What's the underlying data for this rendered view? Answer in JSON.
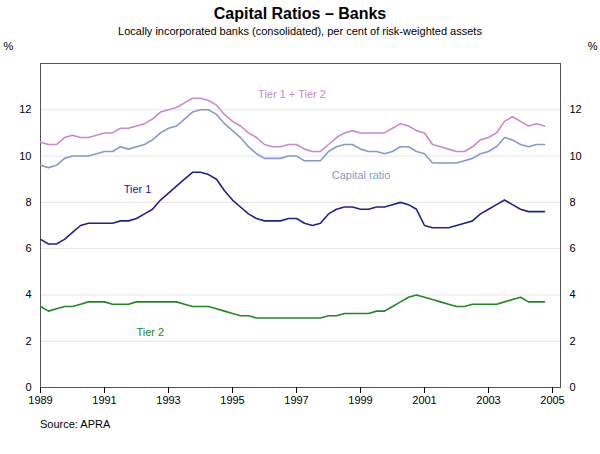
{
  "chart_data": {
    "type": "line",
    "title": "Capital Ratios – Banks",
    "subtitle": "Locally incorporated banks (consolidated), per cent of risk-weighted assets",
    "source": "Source: APRA",
    "ylabel": "%",
    "y2label": "%",
    "xlim": [
      1989.0,
      2005.25
    ],
    "xticks": [
      1989,
      1991,
      1993,
      1995,
      1997,
      1999,
      2001,
      2003,
      2005
    ],
    "ylim": [
      0,
      14
    ],
    "yticks": [
      0,
      2,
      4,
      6,
      8,
      10,
      12
    ],
    "y2lim": [
      0,
      14
    ],
    "y2ticks": [
      0,
      2,
      4,
      6,
      8,
      10,
      12
    ],
    "grid": true,
    "x": [
      1989.0,
      1989.25,
      1989.5,
      1989.75,
      1990.0,
      1990.25,
      1990.5,
      1990.75,
      1991.0,
      1991.25,
      1991.5,
      1991.75,
      1992.0,
      1992.25,
      1992.5,
      1992.75,
      1993.0,
      1993.25,
      1993.5,
      1993.75,
      1994.0,
      1994.25,
      1994.5,
      1994.75,
      1995.0,
      1995.25,
      1995.5,
      1995.75,
      1996.0,
      1996.25,
      1996.5,
      1996.75,
      1997.0,
      1997.25,
      1997.5,
      1997.75,
      1998.0,
      1998.25,
      1998.5,
      1998.75,
      1999.0,
      1999.25,
      1999.5,
      1999.75,
      2000.0,
      2000.25,
      2000.5,
      2000.75,
      2001.0,
      2001.25,
      2001.5,
      2001.75,
      2002.0,
      2002.25,
      2002.5,
      2002.75,
      2003.0,
      2003.25,
      2003.5,
      2003.75,
      2004.0,
      2004.25,
      2004.5,
      2004.75
    ],
    "series": [
      {
        "name": "Tier 1 + Tier 2",
        "color": "#cc88cc",
        "values": [
          10.6,
          10.5,
          10.5,
          10.8,
          10.9,
          10.8,
          10.8,
          10.9,
          11.0,
          11.0,
          11.2,
          11.2,
          11.3,
          11.4,
          11.6,
          11.9,
          12.0,
          12.1,
          12.3,
          12.5,
          12.5,
          12.4,
          12.2,
          11.8,
          11.5,
          11.3,
          11.0,
          10.8,
          10.5,
          10.4,
          10.4,
          10.5,
          10.5,
          10.3,
          10.2,
          10.2,
          10.5,
          10.8,
          11.0,
          11.1,
          11.0,
          11.0,
          11.0,
          11.0,
          11.2,
          11.4,
          11.3,
          11.1,
          11.0,
          10.5,
          10.4,
          10.3,
          10.2,
          10.2,
          10.4,
          10.7,
          10.8,
          11.0,
          11.5,
          11.7,
          11.5,
          11.3,
          11.4,
          11.3
        ]
      },
      {
        "name": "Capital ratio",
        "color": "#8899cc",
        "values": [
          9.6,
          9.5,
          9.6,
          9.9,
          10.0,
          10.0,
          10.0,
          10.1,
          10.2,
          10.2,
          10.4,
          10.3,
          10.4,
          10.5,
          10.7,
          11.0,
          11.2,
          11.3,
          11.6,
          11.9,
          12.0,
          12.0,
          11.8,
          11.4,
          11.1,
          10.8,
          10.4,
          10.1,
          9.9,
          9.9,
          9.9,
          10.0,
          10.0,
          9.8,
          9.8,
          9.8,
          10.2,
          10.4,
          10.5,
          10.5,
          10.3,
          10.2,
          10.2,
          10.1,
          10.2,
          10.4,
          10.4,
          10.2,
          10.1,
          9.7,
          9.7,
          9.7,
          9.7,
          9.8,
          9.9,
          10.1,
          10.2,
          10.4,
          10.8,
          10.7,
          10.5,
          10.4,
          10.5,
          10.5
        ]
      },
      {
        "name": "Tier 1",
        "color": "#222288",
        "values": [
          6.4,
          6.2,
          6.2,
          6.4,
          6.7,
          7.0,
          7.1,
          7.1,
          7.1,
          7.1,
          7.2,
          7.2,
          7.3,
          7.5,
          7.7,
          8.1,
          8.4,
          8.7,
          9.0,
          9.3,
          9.3,
          9.2,
          9.0,
          8.5,
          8.1,
          7.8,
          7.5,
          7.3,
          7.2,
          7.2,
          7.2,
          7.3,
          7.3,
          7.1,
          7.0,
          7.1,
          7.5,
          7.7,
          7.8,
          7.8,
          7.7,
          7.7,
          7.8,
          7.8,
          7.9,
          8.0,
          7.9,
          7.7,
          7.0,
          6.9,
          6.9,
          6.9,
          7.0,
          7.1,
          7.2,
          7.5,
          7.7,
          7.9,
          8.1,
          7.9,
          7.7,
          7.6,
          7.6,
          7.6
        ]
      },
      {
        "name": "Tier 2",
        "color": "#228822",
        "values": [
          3.5,
          3.3,
          3.4,
          3.5,
          3.5,
          3.6,
          3.7,
          3.7,
          3.7,
          3.6,
          3.6,
          3.6,
          3.7,
          3.7,
          3.7,
          3.7,
          3.7,
          3.7,
          3.6,
          3.5,
          3.5,
          3.5,
          3.4,
          3.3,
          3.2,
          3.1,
          3.1,
          3.0,
          3.0,
          3.0,
          3.0,
          3.0,
          3.0,
          3.0,
          3.0,
          3.0,
          3.1,
          3.1,
          3.2,
          3.2,
          3.2,
          3.2,
          3.3,
          3.3,
          3.5,
          3.7,
          3.9,
          4.0,
          3.9,
          3.8,
          3.7,
          3.6,
          3.5,
          3.5,
          3.6,
          3.6,
          3.6,
          3.6,
          3.7,
          3.8,
          3.9,
          3.7,
          3.7,
          3.7
        ]
      }
    ],
    "annotations": [
      {
        "text": "Tier 1 + Tier 2",
        "x": 1995.8,
        "y": 12.5
      },
      {
        "text": "Capital ratio",
        "x": 1998.1,
        "y": 9.35
      },
      {
        "text": "Tier 1",
        "x": 1991.6,
        "y": 8.4
      },
      {
        "text": "Tier 2",
        "x": 1992.0,
        "y": 2.55
      }
    ]
  }
}
